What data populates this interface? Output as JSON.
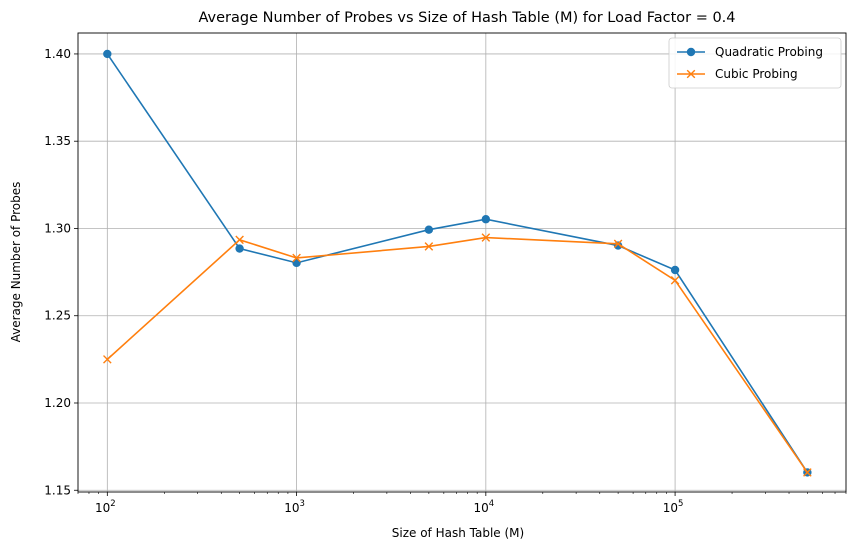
{
  "chart_data": {
    "type": "line",
    "title": "Average Number of Probes vs Size of Hash Table (M) for Load Factor = 0.4",
    "xlabel": "Size of Hash Table (M)",
    "ylabel": "Average Number of Probes",
    "xscale": "log",
    "xlim": [
      70,
      800000
    ],
    "ylim": [
      1.149,
      1.412
    ],
    "grid": true,
    "legend_position": "top-right",
    "x_major_ticks": [
      {
        "value": 100,
        "base": "10",
        "exp": "2"
      },
      {
        "value": 1000,
        "base": "10",
        "exp": "3"
      },
      {
        "value": 10000,
        "base": "10",
        "exp": "4"
      },
      {
        "value": 100000,
        "base": "10",
        "exp": "5"
      }
    ],
    "y_ticks": [
      {
        "value": 1.15,
        "label": "1.15"
      },
      {
        "value": 1.2,
        "label": "1.20"
      },
      {
        "value": 1.25,
        "label": "1.25"
      },
      {
        "value": 1.3,
        "label": "1.30"
      },
      {
        "value": 1.35,
        "label": "1.35"
      },
      {
        "value": 1.4,
        "label": "1.40"
      }
    ],
    "x": [
      100,
      500,
      1000,
      5000,
      10000,
      50000,
      100000,
      500000
    ],
    "series": [
      {
        "name": "Quadratic Probing",
        "color": "#1f77b4",
        "marker": "circle",
        "values": [
          1.4,
          1.2885,
          1.2803,
          1.2993,
          1.3053,
          1.2902,
          1.2762,
          1.1602
        ]
      },
      {
        "name": "Cubic Probing",
        "color": "#ff7f0e",
        "marker": "x",
        "values": [
          1.225,
          1.2935,
          1.2831,
          1.2897,
          1.2948,
          1.2912,
          1.2703,
          1.1602
        ]
      }
    ]
  }
}
